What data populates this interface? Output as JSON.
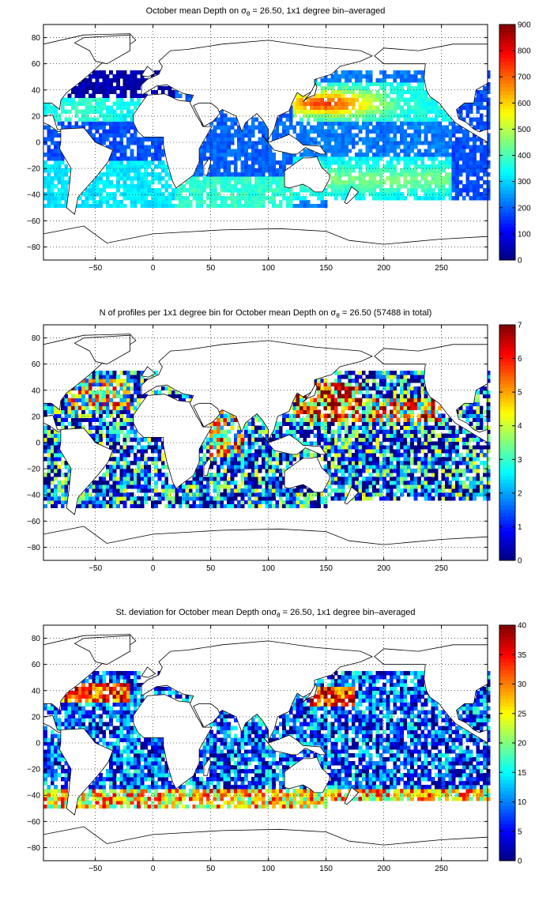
{
  "chart_data": [
    {
      "type": "heatmap",
      "title": "October mean Depth on σθ = 26.50, 1x1 degree bin–averaged",
      "title_parts": {
        "pre": "October mean Depth on σ",
        "sub": "θ",
        "post": " = 26.50, 1x1 degree bin–averaged"
      },
      "xlabel": "",
      "ylabel": "",
      "xlim": [
        -95,
        290
      ],
      "ylim": [
        -90,
        90
      ],
      "xticks": [
        -50,
        0,
        50,
        100,
        150,
        200,
        250
      ],
      "yticks": [
        -80,
        -60,
        -40,
        -20,
        0,
        20,
        40,
        60,
        80
      ],
      "grid": true,
      "colorbar": {
        "min": 0,
        "max": 900,
        "ticks": [
          0,
          100,
          200,
          300,
          400,
          500,
          600,
          700,
          800,
          900
        ],
        "colormap": "jet"
      },
      "pattern": "mean_depth",
      "field_description_values": {
        "subtropical_gyre_max_approx": 650,
        "north_atlantic_subpolar_approx": 50,
        "tropical_approx": 200
      }
    },
    {
      "type": "heatmap",
      "title": "N of profiles per 1x1 degree bin for October mean Depth on σθ = 26.50 (57488 in total)",
      "title_parts": {
        "pre": "N of profiles per 1x1 degree bin for October mean Depth on σ",
        "sub": "θ",
        "post": " = 26.50 (57488 in total)"
      },
      "xlabel": "",
      "ylabel": "",
      "xlim": [
        -95,
        290
      ],
      "ylim": [
        -90,
        90
      ],
      "xticks": [
        -50,
        0,
        50,
        100,
        150,
        200,
        250
      ],
      "yticks": [
        -80,
        -60,
        -40,
        -20,
        0,
        20,
        40,
        60,
        80
      ],
      "grid": true,
      "colorbar": {
        "min": 0,
        "max": 7,
        "ticks": [
          0,
          1,
          2,
          3,
          4,
          5,
          6,
          7
        ],
        "colormap": "jet"
      },
      "pattern": "profile_count",
      "total_profiles": 57488
    },
    {
      "type": "heatmap",
      "title": "St. deviation for October mean Depth onσθ = 26.50, 1x1 degree bin–averaged",
      "title_parts": {
        "pre": "St. deviation for October mean Depth onσ",
        "sub": "θ",
        "post": " = 26.50, 1x1 degree bin–averaged"
      },
      "xlabel": "",
      "ylabel": "",
      "xlim": [
        -95,
        290
      ],
      "ylim": [
        -90,
        90
      ],
      "xticks": [
        -50,
        0,
        50,
        100,
        150,
        200,
        250
      ],
      "yticks": [
        -80,
        -60,
        -40,
        -20,
        0,
        20,
        40,
        60,
        80
      ],
      "grid": true,
      "colorbar": {
        "min": 0,
        "max": 40,
        "ticks": [
          0,
          5,
          10,
          15,
          20,
          25,
          30,
          35,
          40
        ],
        "colormap": "jet"
      },
      "pattern": "std_dev"
    }
  ]
}
